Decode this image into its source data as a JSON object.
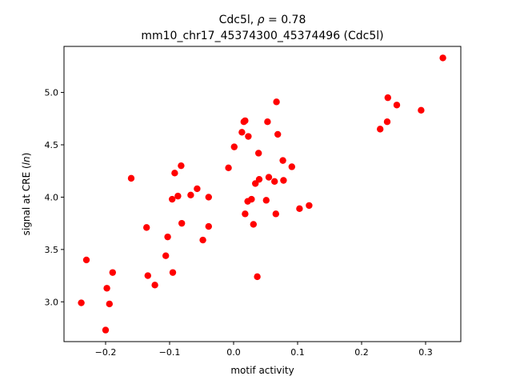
{
  "chart_data": {
    "type": "scatter",
    "title_line1": "Cdc5l, ",
    "title_rho": "ρ",
    "title_rho_value": " = 0.78",
    "title_line2": "mm10_chr17_45374300_45374496 (Cdc5l)",
    "xlabel": "motif activity",
    "ylabel_prefix": "signal at CRE (",
    "ylabel_italic": "ln",
    "ylabel_suffix": ")",
    "xlim": [
      -0.265,
      0.355
    ],
    "ylim": [
      2.62,
      5.44
    ],
    "xticks": [
      -0.2,
      -0.1,
      0.0,
      0.1,
      0.2,
      0.3
    ],
    "xtick_labels": [
      "−0.2",
      "−0.1",
      "0.0",
      "0.1",
      "0.2",
      "0.3"
    ],
    "yticks": [
      3.0,
      3.5,
      4.0,
      4.5,
      5.0
    ],
    "ytick_labels": [
      "3.0",
      "3.5",
      "4.0",
      "4.5",
      "5.0"
    ],
    "grid": false,
    "marker_color": "#ff0000",
    "points": [
      {
        "x": -0.238,
        "y": 2.99
      },
      {
        "x": -0.23,
        "y": 3.4
      },
      {
        "x": -0.2,
        "y": 2.73
      },
      {
        "x": -0.198,
        "y": 3.13
      },
      {
        "x": -0.194,
        "y": 2.98
      },
      {
        "x": -0.189,
        "y": 3.28
      },
      {
        "x": -0.16,
        "y": 4.18
      },
      {
        "x": -0.136,
        "y": 3.71
      },
      {
        "x": -0.134,
        "y": 3.25
      },
      {
        "x": -0.123,
        "y": 3.16
      },
      {
        "x": -0.106,
        "y": 3.44
      },
      {
        "x": -0.103,
        "y": 3.62
      },
      {
        "x": -0.096,
        "y": 3.98
      },
      {
        "x": -0.095,
        "y": 3.28
      },
      {
        "x": -0.092,
        "y": 4.23
      },
      {
        "x": -0.087,
        "y": 4.01
      },
      {
        "x": -0.082,
        "y": 4.3
      },
      {
        "x": -0.081,
        "y": 3.75
      },
      {
        "x": -0.067,
        "y": 4.02
      },
      {
        "x": -0.057,
        "y": 4.08
      },
      {
        "x": -0.048,
        "y": 3.59
      },
      {
        "x": -0.039,
        "y": 4.0
      },
      {
        "x": -0.039,
        "y": 3.72
      },
      {
        "x": -0.008,
        "y": 4.28
      },
      {
        "x": 0.001,
        "y": 4.48
      },
      {
        "x": 0.013,
        "y": 4.62
      },
      {
        "x": 0.016,
        "y": 4.72
      },
      {
        "x": 0.018,
        "y": 4.73
      },
      {
        "x": 0.018,
        "y": 3.84
      },
      {
        "x": 0.022,
        "y": 3.96
      },
      {
        "x": 0.023,
        "y": 4.58
      },
      {
        "x": 0.028,
        "y": 3.98
      },
      {
        "x": 0.031,
        "y": 3.74
      },
      {
        "x": 0.034,
        "y": 4.13
      },
      {
        "x": 0.037,
        "y": 3.24
      },
      {
        "x": 0.039,
        "y": 4.42
      },
      {
        "x": 0.04,
        "y": 4.17
      },
      {
        "x": 0.051,
        "y": 3.97
      },
      {
        "x": 0.053,
        "y": 4.72
      },
      {
        "x": 0.055,
        "y": 4.19
      },
      {
        "x": 0.064,
        "y": 4.15
      },
      {
        "x": 0.066,
        "y": 3.84
      },
      {
        "x": 0.067,
        "y": 4.91
      },
      {
        "x": 0.069,
        "y": 4.6
      },
      {
        "x": 0.077,
        "y": 4.35
      },
      {
        "x": 0.078,
        "y": 4.16
      },
      {
        "x": 0.091,
        "y": 4.29
      },
      {
        "x": 0.103,
        "y": 3.89
      },
      {
        "x": 0.118,
        "y": 3.92
      },
      {
        "x": 0.229,
        "y": 4.65
      },
      {
        "x": 0.24,
        "y": 4.72
      },
      {
        "x": 0.241,
        "y": 4.95
      },
      {
        "x": 0.255,
        "y": 4.88
      },
      {
        "x": 0.293,
        "y": 4.83
      },
      {
        "x": 0.327,
        "y": 5.33
      }
    ]
  }
}
